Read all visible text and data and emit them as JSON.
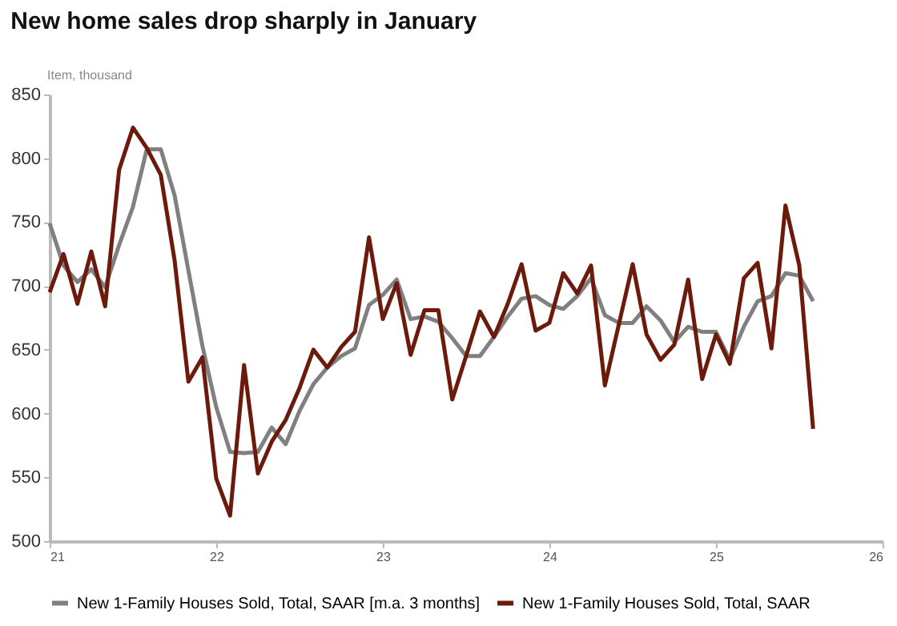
{
  "chart_data": {
    "type": "line",
    "title": "New home sales drop sharply in January",
    "ylabel": "Item, thousand",
    "x": [
      21.0,
      21.083,
      21.167,
      21.25,
      21.333,
      21.417,
      21.5,
      21.583,
      21.667,
      21.75,
      21.833,
      21.917,
      22.0,
      22.083,
      22.167,
      22.25,
      22.333,
      22.417,
      22.5,
      22.583,
      22.667,
      22.75,
      22.833,
      22.917,
      23.0,
      23.083,
      23.167,
      23.25,
      23.333,
      23.417,
      23.5,
      23.583,
      23.667,
      23.75,
      23.833,
      23.917,
      24.0,
      24.083,
      24.167,
      24.25,
      24.333,
      24.417,
      24.5,
      24.583,
      24.667,
      24.75,
      24.833,
      24.917,
      25.0,
      25.083,
      25.167,
      25.25,
      25.333,
      25.417,
      25.5,
      25.583
    ],
    "series": [
      {
        "name": "New 1-Family Houses Sold, Total, SAAR [m.a. 3 months]",
        "color": "#808080",
        "values": [
          749,
          716,
          703,
          713,
          699,
          732,
          762,
          807,
          807,
          771,
          712,
          653,
          605,
          570,
          569,
          570,
          589,
          576,
          602,
          623,
          636,
          645,
          651,
          685,
          693,
          705,
          674,
          676,
          672,
          659,
          645,
          645,
          660,
          676,
          690,
          692,
          685,
          682,
          692,
          706,
          677,
          671,
          671,
          684,
          673,
          656,
          668,
          664,
          664,
          642,
          668,
          688,
          692,
          710,
          708,
          688
        ]
      },
      {
        "name": "New 1-Family Houses Sold, Total, SAAR",
        "color": "#6b1a0c",
        "values": [
          695,
          725,
          686,
          727,
          684,
          791,
          824,
          808,
          787,
          720,
          625,
          644,
          549,
          520,
          638,
          553,
          578,
          595,
          620,
          650,
          636,
          652,
          664,
          738,
          674,
          702,
          646,
          681,
          681,
          611,
          645,
          680,
          660,
          686,
          717,
          665,
          671,
          710,
          694,
          716,
          622,
          670,
          717,
          662,
          642,
          654,
          705,
          627,
          662,
          639,
          706,
          718,
          651,
          763,
          716,
          588
        ]
      }
    ],
    "xlim": [
      21,
      26
    ],
    "xticks": [
      21,
      22,
      23,
      24,
      25,
      26
    ],
    "ylim": [
      500,
      850
    ],
    "yticks": [
      500,
      550,
      600,
      650,
      700,
      750,
      800,
      850
    ],
    "grid": false,
    "legend": "bottom",
    "marker": "none",
    "line_style": "solid"
  }
}
